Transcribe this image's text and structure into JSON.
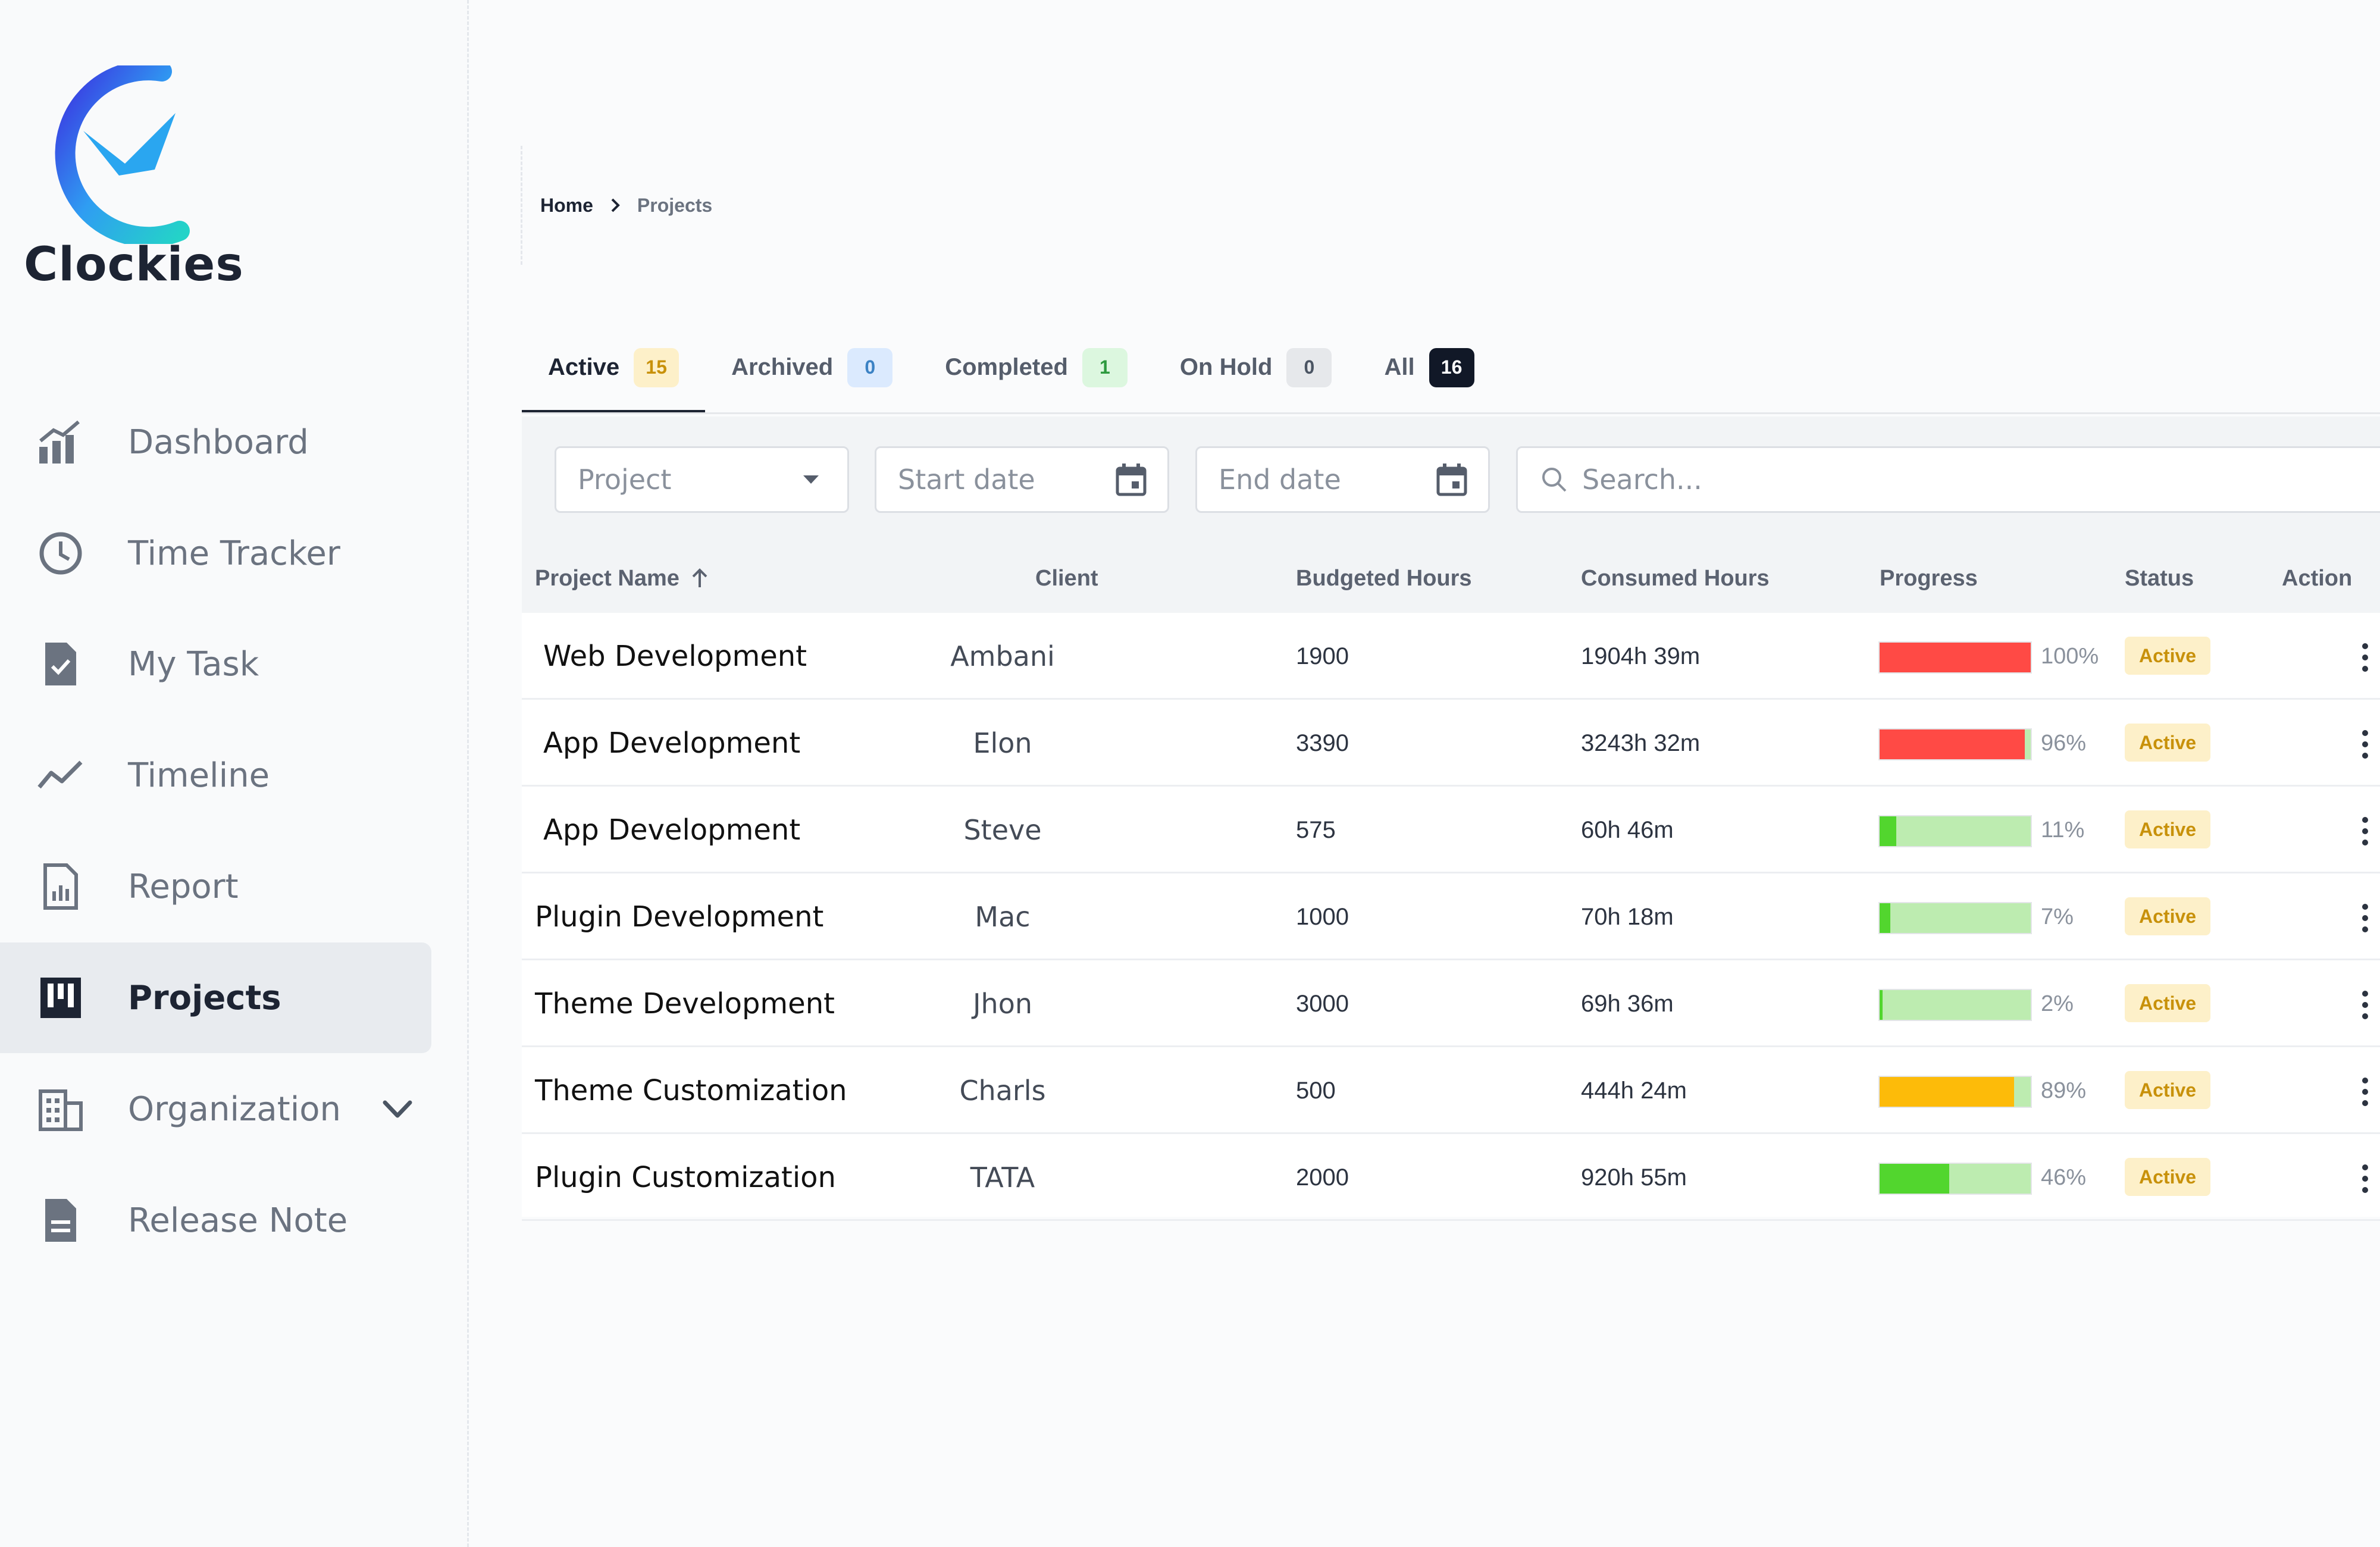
{
  "brand": {
    "name": "Clockies"
  },
  "sidebar": {
    "items": [
      {
        "label": "Dashboard",
        "icon": "chart-icon"
      },
      {
        "label": "Time Tracker",
        "icon": "clock-icon"
      },
      {
        "label": "My Task",
        "icon": "task-icon"
      },
      {
        "label": "Timeline",
        "icon": "timeline-icon"
      },
      {
        "label": "Report",
        "icon": "report-icon"
      },
      {
        "label": "Projects",
        "icon": "projects-icon",
        "active": true
      },
      {
        "label": "Organization",
        "icon": "organization-icon",
        "expandable": true
      },
      {
        "label": "Release Note",
        "icon": "release-note-icon"
      }
    ]
  },
  "breadcrumb": {
    "home": "Home",
    "current": "Projects"
  },
  "tabs": [
    {
      "label": "Active",
      "count": "15"
    },
    {
      "label": "Archived",
      "count": "0"
    },
    {
      "label": "Completed",
      "count": "1"
    },
    {
      "label": "On Hold",
      "count": "0"
    },
    {
      "label": "All",
      "count": "16"
    }
  ],
  "filters": {
    "project_placeholder": "Project",
    "start_date_placeholder": "Start date",
    "end_date_placeholder": "End date",
    "search_placeholder": "Search..."
  },
  "table": {
    "headers": {
      "name": "Project Name",
      "client": "Client",
      "budgeted": "Budgeted Hours",
      "consumed": "Consumed Hours",
      "progress": "Progress",
      "status": "Status",
      "action": "Action"
    },
    "rows": [
      {
        "name": "Web Development",
        "client": "Ambani",
        "budgeted": "1900",
        "consumed": "1904h 39m",
        "progress_pct": "100%",
        "progress": 100,
        "status": "Active",
        "bar_color": "#ff4a45"
      },
      {
        "name": "App Development",
        "client": "Elon",
        "budgeted": "3390",
        "consumed": "3243h 32m",
        "progress_pct": "96%",
        "progress": 96,
        "status": "Active",
        "bar_color": "#ff4a45"
      },
      {
        "name": "App Development",
        "client": "Steve",
        "budgeted": "575",
        "consumed": "60h 46m",
        "progress_pct": "11%",
        "progress": 11,
        "status": "Active",
        "bar_color": "#52d62e"
      },
      {
        "name": "Plugin Development",
        "client": "Mac",
        "budgeted": "1000",
        "consumed": "70h 18m",
        "progress_pct": "7%",
        "progress": 7,
        "status": "Active",
        "bar_color": "#52d62e"
      },
      {
        "name": "Theme Development",
        "client": "Jhon",
        "budgeted": "3000",
        "consumed": "69h 36m",
        "progress_pct": "2%",
        "progress": 2,
        "status": "Active",
        "bar_color": "#52d62e"
      },
      {
        "name": "Theme Customization",
        "client": "Charls",
        "budgeted": "500",
        "consumed": "444h 24m",
        "progress_pct": "89%",
        "progress": 89,
        "status": "Active",
        "bar_color": "#fdbb09"
      },
      {
        "name": "Plugin Customization",
        "client": "TATA",
        "budgeted": "2000",
        "consumed": "920h 55m",
        "progress_pct": "46%",
        "progress": 46,
        "status": "Active",
        "bar_color": "#52d62e"
      }
    ]
  },
  "colors": {
    "accent_dark": "#1d2433",
    "status_active_bg": "#fdf0c9",
    "status_active_text": "#c8910a",
    "bar_track": "#bdecb0"
  }
}
